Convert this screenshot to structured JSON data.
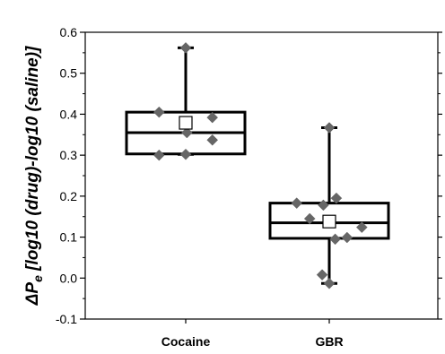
{
  "chart_data": {
    "type": "box",
    "title": "",
    "xlabel": "",
    "ylabel": {
      "delta": "ΔP",
      "subscript": "e",
      "rest": " [log10 (drug)-log10 (saline)]"
    },
    "ylim": [
      -0.1,
      0.6
    ],
    "yticks": [
      "-0.1",
      "0.0",
      "0.1",
      "0.2",
      "0.3",
      "0.4",
      "0.5",
      "0.6"
    ],
    "ytick_values": [
      -0.1,
      0.0,
      0.1,
      0.2,
      0.3,
      0.4,
      0.5,
      0.6
    ],
    "grid": false,
    "categories": [
      "Cocaine",
      "GBR"
    ],
    "boxes": [
      {
        "name": "Cocaine",
        "whisker_low": 0.302,
        "q1": 0.303,
        "median": 0.355,
        "q3": 0.405,
        "whisker_high": 0.562,
        "mean": 0.379,
        "points": [
          {
            "dx": -0.45,
            "y": 0.405
          },
          {
            "dx": 0.45,
            "y": 0.392
          },
          {
            "dx": 0.02,
            "y": 0.355
          },
          {
            "dx": 0.45,
            "y": 0.337
          },
          {
            "dx": -0.45,
            "y": 0.3
          },
          {
            "dx": 0.0,
            "y": 0.302
          },
          {
            "dx": 0.0,
            "y": 0.562
          }
        ]
      },
      {
        "name": "GBR",
        "whisker_low": -0.013,
        "q1": 0.097,
        "median": 0.135,
        "q3": 0.183,
        "whisker_high": 0.367,
        "mean": 0.138,
        "points": [
          {
            "dx": 0.0,
            "y": 0.367
          },
          {
            "dx": 0.12,
            "y": 0.195
          },
          {
            "dx": -0.55,
            "y": 0.183
          },
          {
            "dx": -0.1,
            "y": 0.178
          },
          {
            "dx": -0.33,
            "y": 0.145
          },
          {
            "dx": 0.55,
            "y": 0.124
          },
          {
            "dx": 0.3,
            "y": 0.099
          },
          {
            "dx": 0.1,
            "y": 0.095
          },
          {
            "dx": -0.12,
            "y": 0.008
          },
          {
            "dx": 0.0,
            "y": -0.013
          }
        ]
      }
    ],
    "colors": {
      "box": "#000000",
      "point": "#666666",
      "mean_fill": "#ffffff",
      "mean_stroke": "#000000"
    }
  }
}
